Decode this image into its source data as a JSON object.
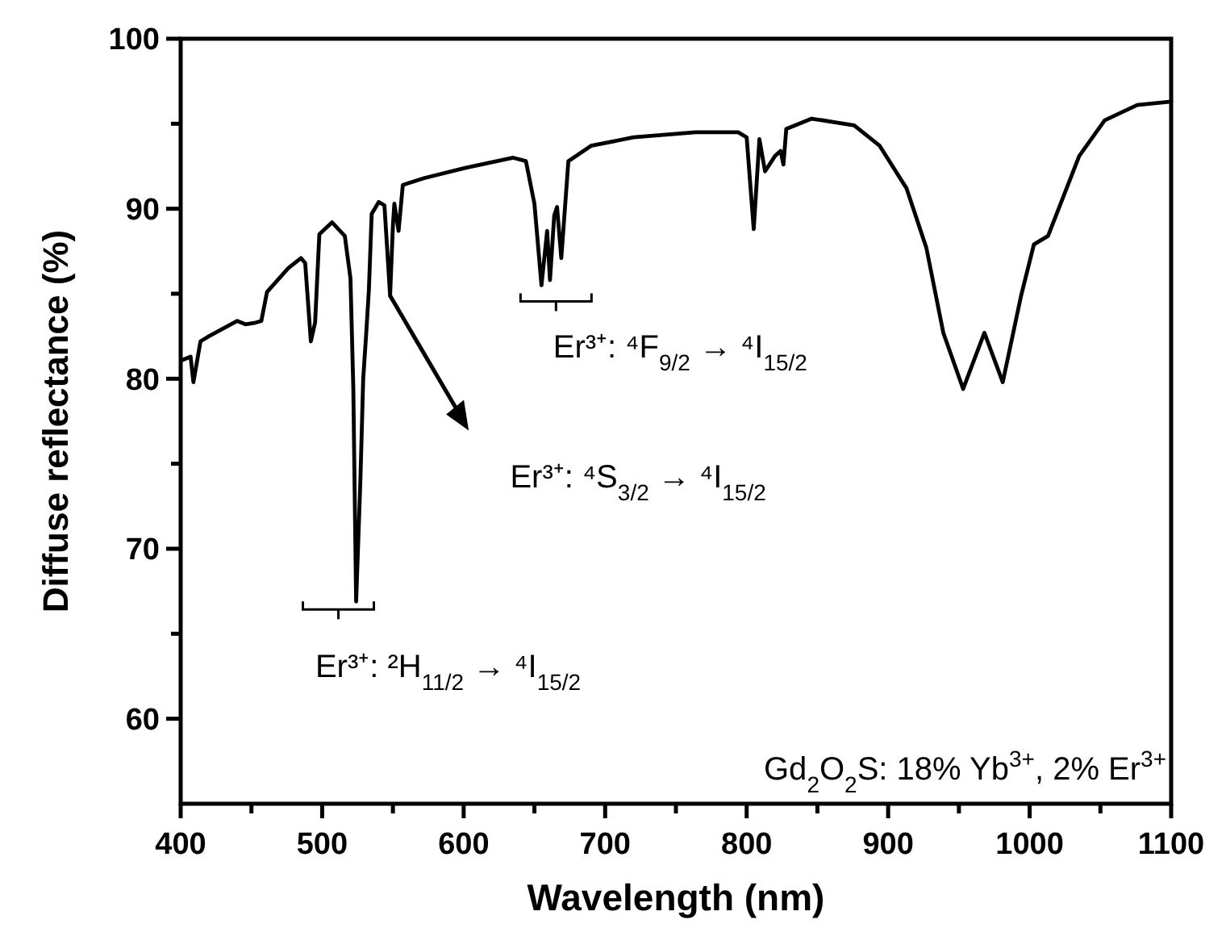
{
  "chart_data": {
    "type": "line",
    "xlabel": "Wavelength (nm)",
    "ylabel": "Diffuse reflectance (%)",
    "xlim": [
      400,
      1100
    ],
    "ylim": [
      55,
      100
    ],
    "xticks": [
      400,
      {
        "value": 450,
        "label": null
      },
      500,
      {
        "value": 550,
        "label": null
      },
      600,
      {
        "value": 650,
        "label": null
      },
      700,
      {
        "value": 750,
        "label": null
      },
      800,
      {
        "value": 850,
        "label": null
      },
      900,
      {
        "value": 950,
        "label": null
      },
      1000,
      {
        "value": 1050,
        "label": null
      },
      1100
    ],
    "yticks": [
      60,
      {
        "value": 65,
        "label": null
      },
      70,
      {
        "value": 75,
        "label": null
      },
      80,
      {
        "value": 85,
        "label": null
      },
      90,
      {
        "value": 95,
        "label": null
      },
      100
    ],
    "series": [
      {
        "color": "#000000",
        "x": [
          401,
          407,
          409,
          414,
          420,
          440,
          446,
          453,
          457,
          461,
          476,
          485,
          488,
          492,
          495,
          498,
          507,
          516,
          520,
          522,
          524,
          527,
          529,
          531,
          533,
          535,
          540,
          544,
          548,
          550,
          551,
          554,
          557,
          572,
          601,
          635,
          644,
          650,
          655,
          659,
          661,
          664,
          666,
          669,
          674,
          690,
          720,
          764,
          794,
          800,
          805,
          809,
          813,
          820,
          824,
          826,
          828,
          846,
          876,
          894,
          913,
          927,
          939,
          953,
          968,
          981,
          994,
          1003,
          1013,
          1035,
          1053,
          1076,
          1100
        ],
        "values": [
          81.1,
          81.3,
          79.8,
          82.2,
          82.5,
          83.4,
          83.2,
          83.3,
          83.4,
          85.1,
          86.5,
          87.1,
          86.8,
          82.2,
          83.3,
          88.5,
          89.2,
          88.4,
          85.9,
          79.5,
          66.9,
          74.0,
          80.0,
          82.5,
          85.2,
          89.7,
          90.4,
          90.2,
          84.9,
          89.0,
          90.3,
          88.7,
          91.4,
          91.8,
          92.4,
          93.0,
          92.8,
          90.3,
          85.5,
          88.7,
          85.8,
          89.6,
          90.1,
          87.1,
          92.8,
          93.7,
          94.2,
          94.5,
          94.5,
          94.2,
          88.8,
          94.1,
          92.2,
          93.1,
          93.4,
          92.6,
          94.7,
          95.3,
          94.9,
          93.7,
          91.2,
          87.7,
          82.7,
          79.4,
          82.7,
          79.8,
          84.9,
          87.9,
          88.4,
          93.1,
          95.2,
          96.1,
          96.3
        ]
      }
    ],
    "annotations": [
      {
        "text": "Er³⁺: ⁴F$_{9/2}$ → ⁴I$_{15/2}$",
        "x": 655,
        "y": 85.5
      },
      "Er³⁺: ⁴S$_{3/2}$ → ⁴I$_{15/2}$",
      {
        "text": "Er³⁺: ²H$_{11/2}$ → ⁴I$_{15/2}$",
        "x": 524,
        "y": 66.9
      },
      "Gd$_{2}$O$_{2}$S: 18% Yb$^{3+}$, 2% Er$^{3+}$"
    ]
  }
}
